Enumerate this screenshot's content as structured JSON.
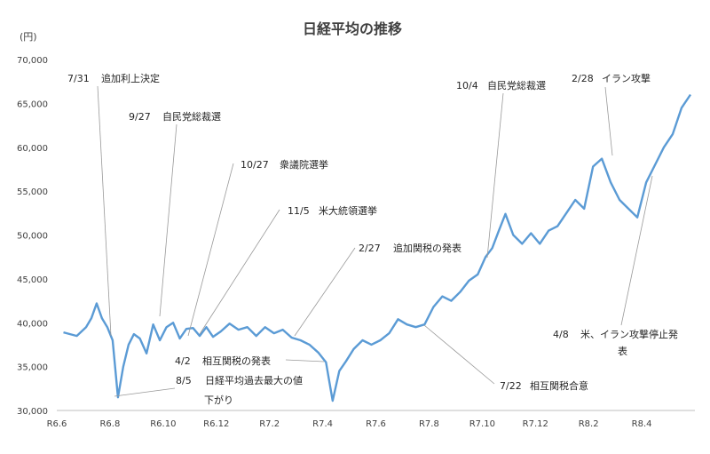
{
  "chart_data": {
    "type": "line",
    "title": "日経平均の推移",
    "unit_label": "(円)",
    "ylim": [
      30000,
      70000
    ],
    "yticks": [
      "30,000",
      "35,000",
      "40,000",
      "45,000",
      "50,000",
      "55,000",
      "60,000",
      "65,000",
      "70,000"
    ],
    "xticks": [
      "R6.6",
      "R6.8",
      "R6.10",
      "R6.12",
      "R7.2",
      "R7.4",
      "R7.6",
      "R7.8",
      "R7.10",
      "R7.12",
      "R8.2",
      "R8.4"
    ],
    "grid": false,
    "series": [
      {
        "color": "#5b9bd5",
        "x": [
          "R6.6",
          "R6.6",
          "R6.7",
          "R6.7",
          "R6.7",
          "R6.7",
          "R6.7",
          "R6.8",
          "R6.8",
          "R6.8",
          "R6.8",
          "R6.8",
          "R6.9",
          "R6.9",
          "R6.9",
          "R6.9",
          "R6.10",
          "R6.10",
          "R6.10",
          "R6.10",
          "R6.11",
          "R6.11",
          "R6.11",
          "R6.11",
          "R6.12",
          "R6.12",
          "R6.12",
          "R7.1",
          "R7.1",
          "R7.1",
          "R7.2",
          "R7.2",
          "R7.2",
          "R7.3",
          "R7.3",
          "R7.3",
          "R7.4",
          "R7.4",
          "R7.4",
          "R7.4",
          "R7.5",
          "R7.5",
          "R7.5",
          "R7.6",
          "R7.6",
          "R7.6",
          "R7.7",
          "R7.7",
          "R7.7",
          "R7.8",
          "R7.8",
          "R7.8",
          "R7.9",
          "R7.9",
          "R7.9",
          "R7.10",
          "R7.10",
          "R7.10",
          "R7.10",
          "R7.11",
          "R7.11",
          "R7.11",
          "R7.12",
          "R7.12",
          "R7.12",
          "R8.1",
          "R8.1",
          "R8.1",
          "R8.2",
          "R8.2",
          "R8.2",
          "R8.3",
          "R8.3",
          "R8.3",
          "R8.4",
          "R8.4",
          "R8.4",
          "R8.5",
          "R8.5",
          "R8.5"
        ],
        "values": [
          38900,
          38500,
          39500,
          40500,
          42200,
          40500,
          39500,
          38000,
          31500,
          35000,
          37500,
          38700,
          38200,
          36500,
          39800,
          38000,
          39500,
          40000,
          38200,
          39300,
          39400,
          38500,
          39500,
          38400,
          39000,
          39900,
          39200,
          39500,
          38500,
          39500,
          38800,
          39200,
          38300,
          38000,
          37500,
          36600,
          35500,
          31100,
          34500,
          35600,
          37000,
          38000,
          37500,
          38000,
          38800,
          40400,
          39800,
          39500,
          39800,
          41800,
          43000,
          42500,
          43500,
          44800,
          45500,
          47500,
          48500,
          50500,
          52400,
          50000,
          49000,
          50200,
          49000,
          50500,
          51000,
          52500,
          54000,
          53000,
          57800,
          58700,
          56000,
          54000,
          53000,
          52000,
          56000,
          58000,
          60000,
          61500,
          64500,
          66000
        ]
      }
    ],
    "annotations": [
      {
        "date": "7/31",
        "text": "追加利上決定"
      },
      {
        "date": "8/5",
        "text": "日経平均過去最大の値",
        "text2": "下がり"
      },
      {
        "date": "9/27",
        "text": "自民党総裁選"
      },
      {
        "date": "10/27",
        "text": "衆議院選挙"
      },
      {
        "date": "11/5",
        "text": "米大統領選挙"
      },
      {
        "date": "2/27",
        "text": "追加関税の発表"
      },
      {
        "date": "4/2",
        "text": "相互関税の発表"
      },
      {
        "date": "7/22",
        "text": "相互関税合意"
      },
      {
        "date": "10/4",
        "text": "自民党総裁選"
      },
      {
        "date": "2/28",
        "text": "イラン攻撃"
      },
      {
        "date": "4/8",
        "text": "米、イラン攻撃停止発",
        "text2": "表"
      }
    ]
  }
}
